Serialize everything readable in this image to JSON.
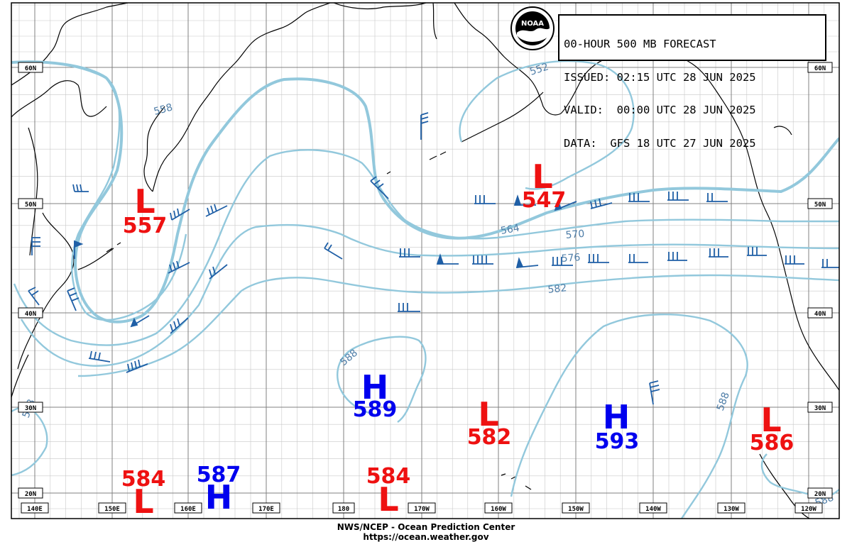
{
  "header": {
    "lines": [
      "00-HOUR 500 MB FORECAST",
      "ISSUED: 02:15 UTC 28 JUN 2025",
      "VALID:  00:00 UTC 28 JUN 2025",
      "DATA:  GFS 18 UTC 27 JUN 2025"
    ],
    "logo_text": "NOAA"
  },
  "footer": {
    "line1": "NWS/NCEP - Ocean Prediction Center",
    "line2": "https://ocean.weather.gov"
  },
  "lat_labels": [
    "60N",
    "50N",
    "40N",
    "30N",
    "20N"
  ],
  "lon_labels": [
    "140E",
    "150E",
    "160E",
    "170E",
    "180",
    "170W",
    "160W",
    "150W",
    "140W",
    "130W",
    "120W"
  ],
  "contour_labels": [
    "558",
    "552",
    "564",
    "570",
    "576",
    "582",
    "588",
    "588",
    "588",
    "588",
    "588"
  ],
  "pressure_centers": [
    {
      "type": "L",
      "value": "557"
    },
    {
      "type": "L",
      "value": "547"
    },
    {
      "type": "H",
      "value": "589"
    },
    {
      "type": "L",
      "value": "582"
    },
    {
      "type": "H",
      "value": "593"
    },
    {
      "type": "L",
      "value": "586"
    },
    {
      "type": "L",
      "value": "584"
    },
    {
      "type": "H",
      "value": "587"
    },
    {
      "type": "L",
      "value": "584"
    }
  ],
  "colors": {
    "contour": "#92c8dc",
    "contour_label": "#4f7ea8",
    "barb": "#1f5fa6",
    "high": "#0000ee",
    "low": "#ee1111",
    "coast": "#000000",
    "grid_major": "#808080",
    "grid_minor": "#c8c8c8"
  }
}
